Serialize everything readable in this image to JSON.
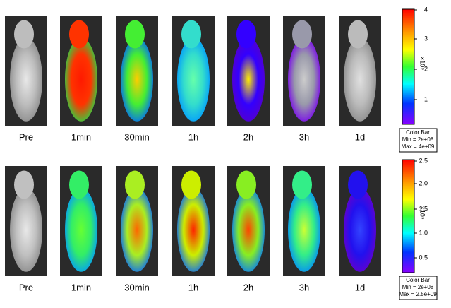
{
  "rows": [
    {
      "labels": [
        "Pre",
        "1min",
        "30min",
        "1h",
        "2h",
        "3h",
        "1d"
      ],
      "colorbar": {
        "ticks": [
          "4",
          "3",
          "2",
          "1"
        ],
        "unit": "×10⁹",
        "legend": [
          "Color Bar",
          "Min = 2e+08",
          "Max = 4e+09"
        ]
      }
    },
    {
      "labels": [
        "Pre",
        "1min",
        "30min",
        "1h",
        "2h",
        "3h",
        "1d"
      ],
      "colorbar": {
        "ticks": [
          "2.5",
          "2.0",
          "1.5",
          "1.0",
          "0.5"
        ],
        "unit": "×10⁹",
        "legend": [
          "Color Bar",
          "Min = 2e+08",
          "Max = 2.5e+09"
        ]
      }
    }
  ]
}
